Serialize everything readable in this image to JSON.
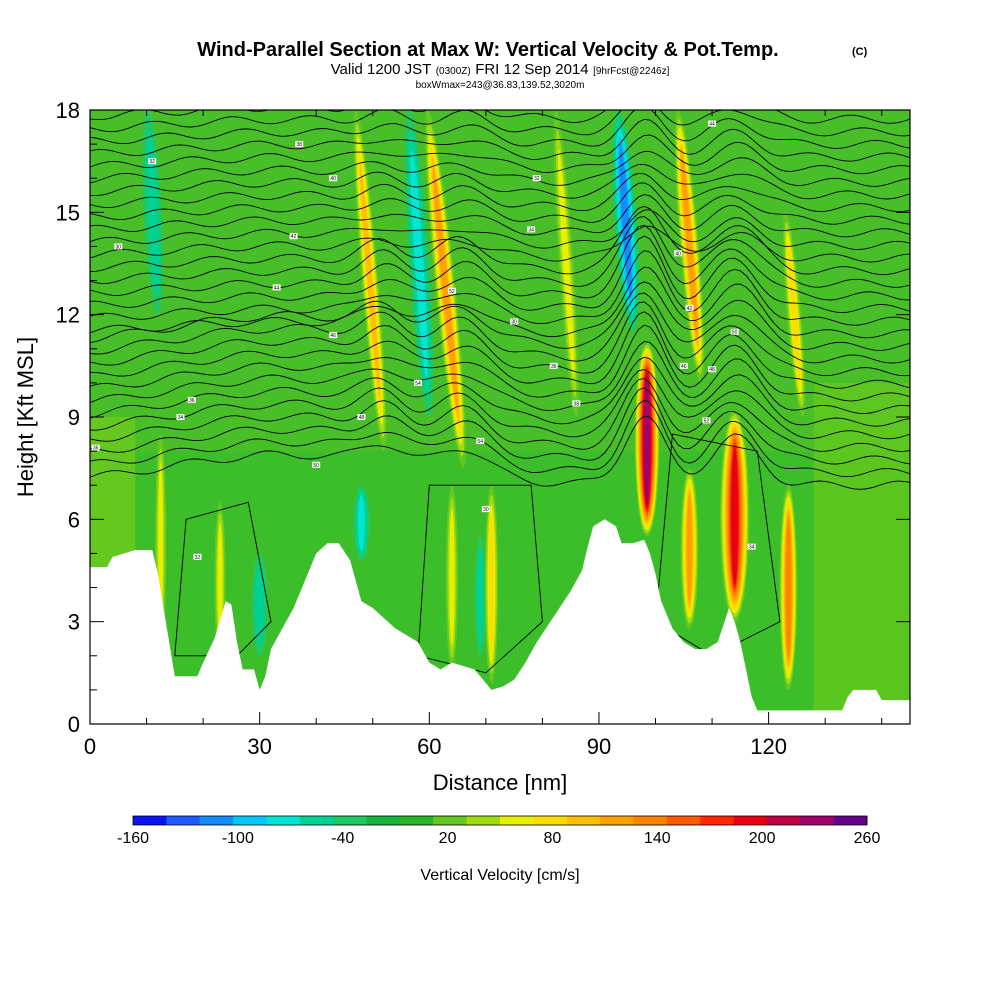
{
  "chart_data": {
    "type": "heatmap",
    "title": "Wind-Parallel Section at Max W: Vertical Velocity & Pot.Temp.",
    "title_mark": "(C)",
    "subtitle_parts": [
      "Valid 1200 JST",
      "(0300Z)",
      "FRI 12 Sep 2014",
      "[9hrFcst@2246z]"
    ],
    "subtitle2": "boxWmax=243@36.83,139.52,3020m",
    "xlabel": "Distance [nm]",
    "ylabel": "Height [Kft MSL]",
    "xlim": [
      0,
      145
    ],
    "ylim": [
      0,
      18
    ],
    "x_ticks": [
      "0",
      "30",
      "60",
      "90",
      "120"
    ],
    "y_ticks": [
      "0",
      "3",
      "6",
      "9",
      "12",
      "15",
      "18"
    ],
    "colorbar": {
      "label": "Vertical Velocity [cm/s]",
      "tick_labels": [
        "-160",
        "-100",
        "-40",
        "20",
        "80",
        "140",
        "200",
        "260"
      ],
      "levels": [
        -160,
        -140,
        -120,
        -100,
        -80,
        -60,
        -40,
        -20,
        0,
        20,
        40,
        60,
        80,
        100,
        120,
        140,
        160,
        180,
        200,
        220,
        240,
        260
      ],
      "colors": [
        "#0a14f0",
        "#1e5aff",
        "#148cff",
        "#00c8ff",
        "#00e6d2",
        "#00d296",
        "#1ec864",
        "#14b43c",
        "#28b428",
        "#64c81e",
        "#a0dc14",
        "#e6f000",
        "#ffdc00",
        "#ffbe00",
        "#ffa000",
        "#ff8200",
        "#ff5a00",
        "#ff2800",
        "#e60014",
        "#be0046",
        "#a0006e",
        "#64008c"
      ]
    },
    "terrain_kft": [
      [
        0,
        4.6
      ],
      [
        3,
        4.6
      ],
      [
        4,
        4.9
      ],
      [
        8,
        5.1
      ],
      [
        11,
        5.1
      ],
      [
        12,
        4.4
      ],
      [
        13,
        3.4
      ],
      [
        14,
        2.4
      ],
      [
        15,
        1.4
      ],
      [
        19,
        1.4
      ],
      [
        20,
        1.8
      ],
      [
        22,
        2.5
      ],
      [
        24,
        3.6
      ],
      [
        25,
        3.5
      ],
      [
        26,
        2.4
      ],
      [
        27,
        1.6
      ],
      [
        29,
        1.6
      ],
      [
        30,
        1.0
      ],
      [
        31,
        1.4
      ],
      [
        32,
        2.2
      ],
      [
        34,
        2.8
      ],
      [
        36,
        3.4
      ],
      [
        38,
        4.2
      ],
      [
        40,
        5.0
      ],
      [
        42,
        5.3
      ],
      [
        44,
        5.3
      ],
      [
        46,
        4.8
      ],
      [
        47,
        4.2
      ],
      [
        48,
        3.6
      ],
      [
        50,
        3.4
      ],
      [
        52,
        3.1
      ],
      [
        54,
        2.8
      ],
      [
        56,
        2.6
      ],
      [
        58,
        2.4
      ],
      [
        60,
        1.8
      ],
      [
        62,
        1.6
      ],
      [
        64,
        1.8
      ],
      [
        66,
        1.7
      ],
      [
        68,
        1.6
      ],
      [
        70,
        1.2
      ],
      [
        71,
        1.0
      ],
      [
        73,
        1.1
      ],
      [
        75,
        1.3
      ],
      [
        77,
        1.8
      ],
      [
        79,
        2.4
      ],
      [
        81,
        2.9
      ],
      [
        83,
        3.4
      ],
      [
        85,
        3.9
      ],
      [
        87,
        4.5
      ],
      [
        88,
        5.2
      ],
      [
        89,
        5.8
      ],
      [
        91,
        6.0
      ],
      [
        93,
        5.8
      ],
      [
        94,
        5.3
      ],
      [
        96,
        5.3
      ],
      [
        98,
        5.4
      ],
      [
        99,
        5.0
      ],
      [
        100,
        4.4
      ],
      [
        101,
        3.6
      ],
      [
        103,
        2.8
      ],
      [
        105,
        2.4
      ],
      [
        107,
        2.2
      ],
      [
        109,
        2.2
      ],
      [
        111,
        2.4
      ],
      [
        112,
        2.9
      ],
      [
        113,
        3.4
      ],
      [
        114,
        3.0
      ],
      [
        115,
        2.4
      ],
      [
        116,
        1.6
      ],
      [
        117,
        0.8
      ],
      [
        118,
        0.4
      ],
      [
        120,
        0.4
      ],
      [
        125,
        0.4
      ],
      [
        133,
        0.4
      ],
      [
        134,
        0.8
      ],
      [
        135,
        1.0
      ],
      [
        139,
        1.0
      ],
      [
        140,
        0.7
      ],
      [
        145,
        0.7
      ]
    ],
    "updraft_bands": [
      {
        "x": 98.5,
        "z0": 5.5,
        "z1": 11.2,
        "w": 2.2,
        "peak": 243
      },
      {
        "x": 114,
        "z0": 3.0,
        "z1": 9.2,
        "w": 2.6,
        "peak": 210
      },
      {
        "x": 106,
        "z0": 2.8,
        "z1": 7.5,
        "w": 1.6,
        "peak": 120
      },
      {
        "x": 123.5,
        "z0": 1.0,
        "z1": 7.0,
        "w": 1.6,
        "peak": 150
      },
      {
        "x": 71,
        "z0": 1.2,
        "z1": 7.0,
        "w": 1.2,
        "peak": 90
      },
      {
        "x": 64,
        "z0": 1.6,
        "z1": 7.0,
        "w": 1.1,
        "peak": 70
      },
      {
        "x": 23,
        "z0": 1.8,
        "z1": 6.5,
        "w": 1.0,
        "peak": 70
      },
      {
        "x": 12.5,
        "z0": 2.0,
        "z1": 8.5,
        "w": 1.0,
        "peak": 70
      },
      {
        "x": 66,
        "z0": 7.5,
        "z1": 18,
        "w": 1.8,
        "peak": 130,
        "slope": -0.6
      },
      {
        "x": 52,
        "z0": 8.0,
        "z1": 18,
        "w": 1.5,
        "peak": 100,
        "slope": -0.5
      },
      {
        "x": 108,
        "z0": 10.0,
        "z1": 18,
        "w": 1.7,
        "peak": 120,
        "slope": -0.5
      },
      {
        "x": 86,
        "z0": 9.0,
        "z1": 18,
        "w": 1.3,
        "peak": 70,
        "slope": -0.4
      },
      {
        "x": 126,
        "z0": 9.0,
        "z1": 15,
        "w": 1.3,
        "peak": 80,
        "slope": -0.5
      }
    ],
    "downdraft_bands": [
      {
        "x": 96,
        "z0": 11.5,
        "z1": 18,
        "w": 2.0,
        "peak": -110,
        "slope": -0.4
      },
      {
        "x": 60,
        "z0": 9.0,
        "z1": 18,
        "w": 1.8,
        "peak": -70,
        "slope": -0.4
      },
      {
        "x": 48,
        "z0": 4.8,
        "z1": 7.0,
        "w": 1.4,
        "peak": -60
      },
      {
        "x": 12,
        "z0": 12,
        "z1": 18,
        "w": 1.6,
        "peak": -50,
        "slope": -0.3
      },
      {
        "x": 30,
        "z0": 2.0,
        "z1": 5.0,
        "w": 1.4,
        "peak": -40
      },
      {
        "x": 69,
        "z0": 2.0,
        "z1": 5.5,
        "w": 1.0,
        "peak": -50
      }
    ],
    "theta_contours_note": "potential temperature isentropes, upward bulge near 98 nm and 114 nm",
    "theta_labels": [
      "30",
      "32",
      "34",
      "36",
      "38",
      "40",
      "42",
      "44",
      "46",
      "48",
      "50",
      "52",
      "54"
    ]
  }
}
